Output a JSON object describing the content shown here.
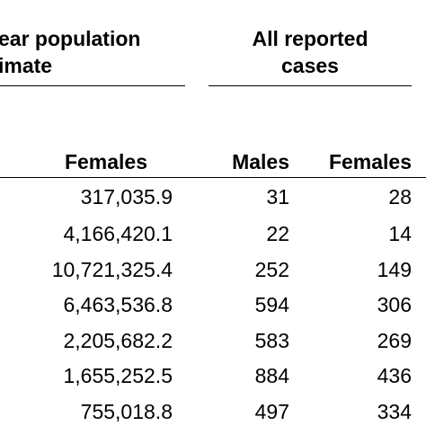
{
  "header": {
    "group_population": [
      "ear population",
      "imate"
    ],
    "group_cases": [
      "All reported",
      "cases"
    ],
    "col_females_pop": "Females",
    "col_males_cases": "Males",
    "col_females_cases": "Females"
  },
  "rows": [
    {
      "females_pop": "317,035.9",
      "males_cases": "31",
      "females_cases": "28"
    },
    {
      "females_pop": "4,166,420.1",
      "males_cases": "22",
      "females_cases": "14"
    },
    {
      "females_pop": "10,721,325.4",
      "males_cases": "252",
      "females_cases": "149"
    },
    {
      "females_pop": "6,463,536.8",
      "males_cases": "594",
      "females_cases": "306"
    },
    {
      "females_pop": "2,205,682.2",
      "males_cases": "583",
      "females_cases": "269"
    },
    {
      "females_pop": "1,655,252.5",
      "males_cases": "884",
      "females_cases": "436"
    },
    {
      "females_pop": "755,018.8",
      "males_cases": "497",
      "females_cases": "334"
    }
  ]
}
